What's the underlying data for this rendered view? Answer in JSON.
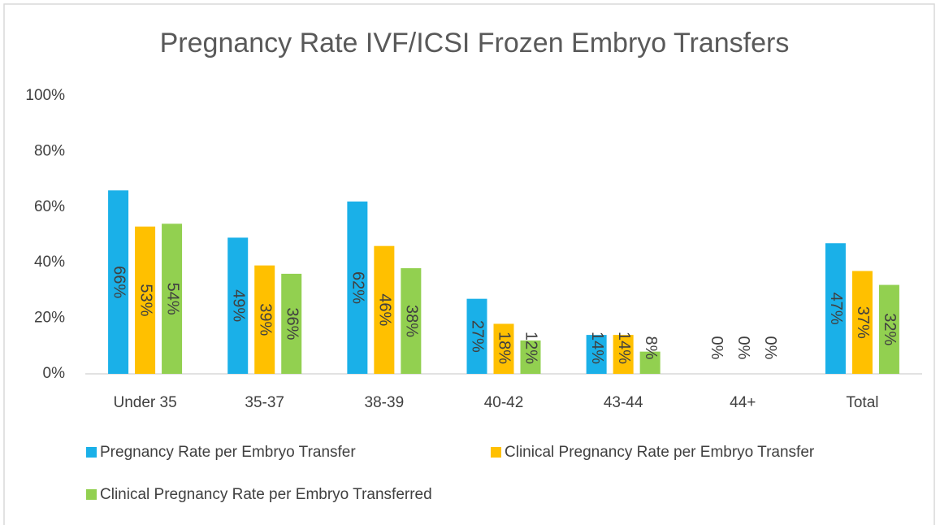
{
  "chart_data": {
    "type": "bar",
    "title": "Pregnancy Rate IVF/ICSI Frozen Embryo Transfers",
    "categories": [
      "Under 35",
      "35-37",
      "38-39",
      "40-42",
      "43-44",
      "44+",
      "Total"
    ],
    "series": [
      {
        "name": "Pregnancy Rate per Embryo Transfer",
        "color": "#1ab0e8",
        "values": [
          66,
          49,
          62,
          27,
          14,
          0,
          47
        ],
        "value_labels": [
          "66%",
          "49%",
          "62%",
          "27%",
          "14%",
          "0%",
          "47%"
        ]
      },
      {
        "name": "Clinical Pregnancy Rate per Embryo Transfer",
        "color": "#ffc000",
        "values": [
          53,
          39,
          46,
          18,
          14,
          0,
          37
        ],
        "value_labels": [
          "53%",
          "39%",
          "46%",
          "18%",
          "14%",
          "0%",
          "37%"
        ]
      },
      {
        "name": "Clinical Pregnancy Rate per Embryo Transferred",
        "color": "#92d050",
        "values": [
          54,
          36,
          38,
          12,
          8,
          0,
          32
        ],
        "value_labels": [
          "54%",
          "36%",
          "38%",
          "12%",
          "8%",
          "0%",
          "32%"
        ]
      }
    ],
    "ylim": [
      0,
      100
    ],
    "yticks": [
      {
        "value": 0,
        "label": "0%"
      },
      {
        "value": 20,
        "label": "20%"
      },
      {
        "value": 40,
        "label": "40%"
      },
      {
        "value": 60,
        "label": "60%"
      },
      {
        "value": 80,
        "label": "80%"
      },
      {
        "value": 100,
        "label": "100%"
      }
    ],
    "grid": false,
    "legend": "bottom"
  }
}
